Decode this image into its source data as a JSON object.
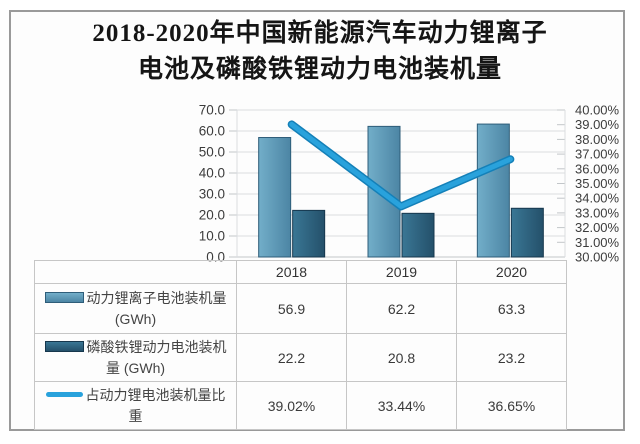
{
  "colors": {
    "frame_border": "#9a9a9a",
    "grid": "#dadde0",
    "baseline": "#c2c6c9",
    "axis_text": "#3c3c3c",
    "table_border": "#c6c6c6",
    "line_core": "#29a2dc",
    "line_edge": "#1480b8"
  },
  "chart_data": {
    "type": "bar+line",
    "title": {
      "line1": "2018-2020年中国新能源汽车动力锂离子",
      "line2": "电池及磷酸铁锂动力电池装机量"
    },
    "categories": [
      "2018",
      "2019",
      "2020"
    ],
    "series": [
      {
        "name": "动力锂离子电池装机量(GWh)",
        "type": "bar",
        "axis": "left",
        "values": [
          56.9,
          62.2,
          63.3
        ],
        "gradient": [
          "#72aec9",
          "#4c85a4"
        ],
        "stroke": "#2e5d79"
      },
      {
        "name": "磷酸铁锂动力电池装机量(GWh)",
        "type": "bar",
        "axis": "left",
        "values": [
          22.2,
          20.8,
          23.2
        ],
        "gradient": [
          "#3a7795",
          "#24506a"
        ],
        "stroke": "#16374d"
      },
      {
        "name": "占动力锂电池装机量比重",
        "type": "line",
        "axis": "right",
        "values": [
          39.02,
          33.44,
          36.65
        ],
        "color": "#29a2dc",
        "edge": "#1480b8"
      }
    ],
    "left_axis": {
      "min": 0,
      "max": 70,
      "step": 10,
      "ticks": [
        "70.0",
        "60.0",
        "50.0",
        "40.0",
        "30.0",
        "20.0",
        "10.0",
        "0.0"
      ]
    },
    "right_axis": {
      "min": 30,
      "max": 40,
      "step": 1,
      "ticks": [
        "40.00%",
        "39.00%",
        "38.00%",
        "37.00%",
        "36.00%",
        "35.00%",
        "34.00%",
        "33.00%",
        "32.00%",
        "31.00%",
        "30.00%"
      ]
    },
    "grid": true,
    "legend_position": "table-left"
  },
  "table": {
    "header": [
      "2018",
      "2019",
      "2020"
    ],
    "rows": [
      {
        "label_line1": "动力锂离子电池装机量",
        "label_line2": "(GWh)",
        "values": [
          "56.9",
          "62.2",
          "63.3"
        ]
      },
      {
        "label_line1": "磷酸铁锂动力电池装机",
        "label_line2": "量 (GWh)",
        "values": [
          "22.2",
          "20.8",
          "23.2"
        ]
      },
      {
        "label_line1": "占动力锂电池装机量比",
        "label_line2": "重",
        "values": [
          "39.02%",
          "33.44%",
          "36.65%"
        ]
      }
    ]
  }
}
